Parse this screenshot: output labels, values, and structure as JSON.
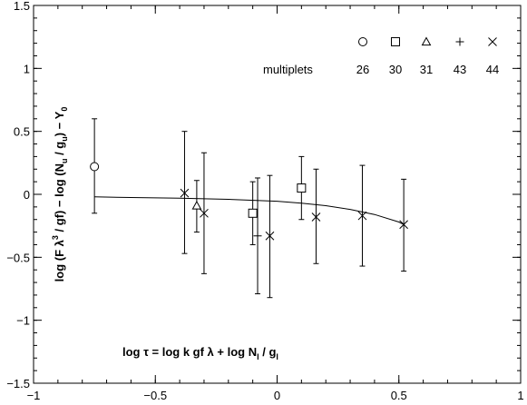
{
  "chart_data": {
    "type": "scatter",
    "title": "",
    "xlabel": "",
    "ylabel_parts": [
      "log (F λ",
      "3",
      " / gf) − log (N",
      "u",
      " / g",
      "u",
      ") − Y",
      "0"
    ],
    "xlim": [
      -1,
      1
    ],
    "ylim": [
      -1.5,
      1.5
    ],
    "xticks": [
      -1,
      -0.5,
      0,
      0.5,
      1
    ],
    "xtick_labels": [
      "−1",
      "−0.5",
      "0",
      "0.5",
      "1"
    ],
    "yticks": [
      -1.5,
      -1,
      -0.5,
      0,
      0.5,
      1,
      1.5
    ],
    "ytick_labels": [
      "−1.5",
      "−1",
      "−0.5",
      "0",
      "0.5",
      "1",
      "1.5"
    ],
    "grid": false,
    "legend": {
      "placement": "top-right",
      "row_label": "multiplets",
      "entries": [
        {
          "marker": "circle",
          "label": "26"
        },
        {
          "marker": "square",
          "label": "30"
        },
        {
          "marker": "triangle",
          "label": "31"
        },
        {
          "marker": "plus",
          "label": "43"
        },
        {
          "marker": "cross",
          "label": "44"
        }
      ]
    },
    "series": [
      {
        "marker": "circle",
        "points": [
          {
            "x": -0.75,
            "y": 0.22,
            "yerr_low": -0.15,
            "yerr_high": 0.6
          }
        ]
      },
      {
        "marker": "square",
        "points": [
          {
            "x": -0.1,
            "y": -0.15,
            "yerr_low": -0.4,
            "yerr_high": 0.1
          },
          {
            "x": 0.1,
            "y": 0.05,
            "yerr_low": -0.2,
            "yerr_high": 0.3
          }
        ]
      },
      {
        "marker": "triangle",
        "points": [
          {
            "x": -0.33,
            "y": -0.09,
            "yerr_low": -0.3,
            "yerr_high": 0.11
          }
        ]
      },
      {
        "marker": "plus",
        "points": [
          {
            "x": -0.08,
            "y": -0.33,
            "yerr_low": -0.79,
            "yerr_high": 0.13
          }
        ]
      },
      {
        "marker": "cross",
        "points": [
          {
            "x": -0.38,
            "y": 0.01,
            "yerr_low": -0.47,
            "yerr_high": 0.5
          },
          {
            "x": -0.3,
            "y": -0.15,
            "yerr_low": -0.63,
            "yerr_high": 0.33
          },
          {
            "x": -0.03,
            "y": -0.33,
            "yerr_low": -0.82,
            "yerr_high": 0.15
          },
          {
            "x": 0.16,
            "y": -0.18,
            "yerr_low": -0.55,
            "yerr_high": 0.2
          },
          {
            "x": 0.35,
            "y": -0.17,
            "yerr_low": -0.57,
            "yerr_high": 0.23
          },
          {
            "x": 0.52,
            "y": -0.24,
            "yerr_low": -0.61,
            "yerr_high": 0.12
          }
        ]
      }
    ],
    "fit_curve": {
      "x": [
        -0.75,
        -0.6,
        -0.4,
        -0.2,
        0.0,
        0.1,
        0.2,
        0.3,
        0.4,
        0.5,
        0.52
      ],
      "y": [
        -0.02,
        -0.025,
        -0.03,
        -0.04,
        -0.055,
        -0.07,
        -0.09,
        -0.12,
        -0.16,
        -0.22,
        -0.24
      ]
    },
    "annotation_parts": [
      "log τ = log k gf λ + log N",
      "l",
      " / g",
      "l"
    ]
  }
}
